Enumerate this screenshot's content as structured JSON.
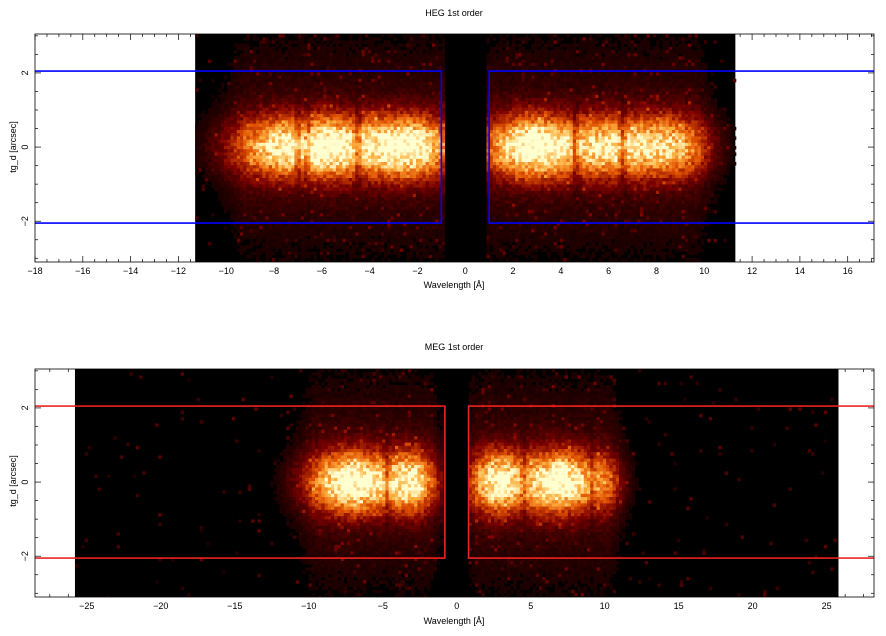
{
  "chart_data": [
    {
      "type": "heatmap",
      "title": "HEG 1st order",
      "xlabel": "Wavelength [Å]",
      "ylabel": "tg_d [arcsec]",
      "xlim": [
        -18,
        17.1
      ],
      "ylim": [
        -3.1,
        3.05
      ],
      "x_ticks": [
        -18,
        -16,
        -14,
        -12,
        -10,
        -8,
        -6,
        -4,
        -2,
        0,
        2,
        4,
        6,
        8,
        10,
        12,
        14,
        16
      ],
      "y_ticks": [
        -2,
        0,
        2
      ],
      "data_extent_x": [
        -11.3,
        11.3
      ],
      "central_gap_x": [
        -0.9,
        0.9
      ],
      "box_color": "#0000ff",
      "colormap": [
        "#000000",
        "#7a0000",
        "#e05000",
        "#ffb040",
        "#ffffd0"
      ],
      "extraction_regions": [
        {
          "x": [
            -100,
            -1.0
          ],
          "y": [
            -2.05,
            2.05
          ]
        },
        {
          "x": [
            1.0,
            100
          ],
          "y": [
            -2.05,
            2.05
          ]
        }
      ],
      "emission_blobs": [
        {
          "x": -2.5,
          "amp": 1.0,
          "sx": 1.3
        },
        {
          "x": -7.6,
          "amp": 0.75,
          "sx": 1.5
        },
        {
          "x": -5.5,
          "amp": 0.65,
          "sx": 1.2
        },
        {
          "x": 2.8,
          "amp": 1.0,
          "sx": 1.3
        },
        {
          "x": 6.3,
          "amp": 0.8,
          "sx": 1.4
        },
        {
          "x": 8.8,
          "amp": 0.55,
          "sx": 1.0
        }
      ],
      "absorption_lines": [
        -7.0,
        -6.6,
        -4.5,
        4.6,
        6.6
      ]
    },
    {
      "type": "heatmap",
      "title": "MEG 1st order",
      "xlabel": "Wavelength [Å]",
      "ylabel": "tg_d [arcsec]",
      "xlim": [
        -28.5,
        28.2
      ],
      "ylim": [
        -3.1,
        3.05
      ],
      "x_ticks": [
        -25,
        -20,
        -15,
        -10,
        -5,
        0,
        5,
        10,
        15,
        20,
        25
      ],
      "y_ticks": [
        -2,
        0,
        2
      ],
      "data_extent_x": [
        -25.8,
        25.8
      ],
      "central_gap_x": [
        -0.9,
        0.9
      ],
      "box_color": "#ee2222",
      "colormap": [
        "#000000",
        "#7a0000",
        "#e05000",
        "#ffb040",
        "#ffffd0"
      ],
      "extraction_regions": [
        {
          "x": [
            -100,
            -0.8
          ],
          "y": [
            -2.05,
            2.05
          ]
        },
        {
          "x": [
            0.8,
            100
          ],
          "y": [
            -2.05,
            2.05
          ]
        }
      ],
      "emission_blobs": [
        {
          "x": -7.0,
          "amp": 1.0,
          "sx": 2.0
        },
        {
          "x": -3.0,
          "amp": 0.75,
          "sx": 1.1
        },
        {
          "x": 2.8,
          "amp": 0.9,
          "sx": 1.3
        },
        {
          "x": 6.8,
          "amp": 1.0,
          "sx": 1.5
        },
        {
          "x": 9.8,
          "amp": 0.4,
          "sx": 1.0
        }
      ],
      "absorption_lines": [
        -4.7,
        4.5,
        9.2
      ]
    }
  ]
}
